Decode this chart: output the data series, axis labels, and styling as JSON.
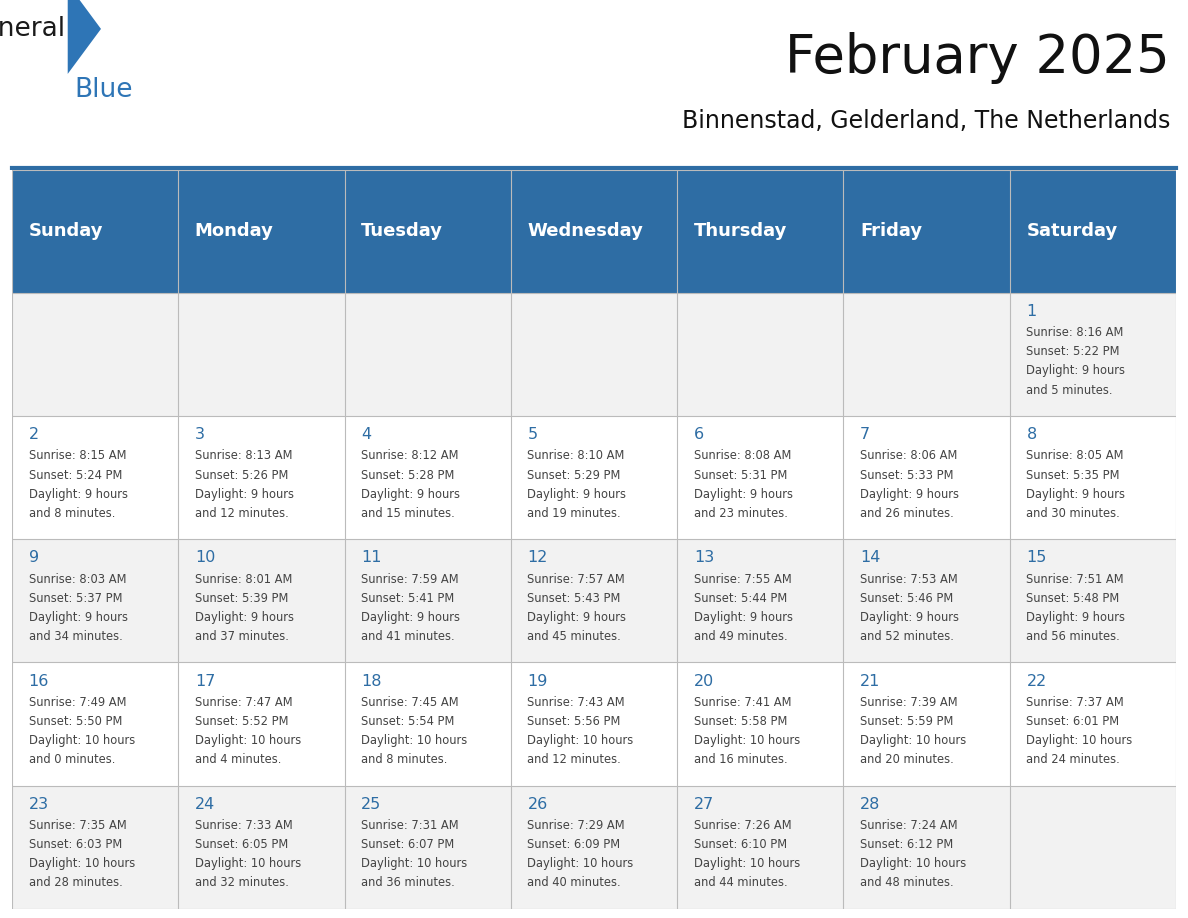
{
  "title": "February 2025",
  "subtitle": "Binnenstad, Gelderland, The Netherlands",
  "header_bg": "#2E6DA4",
  "header_text_color": "#FFFFFF",
  "cell_bg_odd": "#F2F2F2",
  "cell_bg_even": "#FFFFFF",
  "day_number_color": "#2E6DA4",
  "text_color": "#444444",
  "days_of_week": [
    "Sunday",
    "Monday",
    "Tuesday",
    "Wednesday",
    "Thursday",
    "Friday",
    "Saturday"
  ],
  "weeks": [
    [
      {
        "day": "",
        "info": ""
      },
      {
        "day": "",
        "info": ""
      },
      {
        "day": "",
        "info": ""
      },
      {
        "day": "",
        "info": ""
      },
      {
        "day": "",
        "info": ""
      },
      {
        "day": "",
        "info": ""
      },
      {
        "day": "1",
        "info": "Sunrise: 8:16 AM\nSunset: 5:22 PM\nDaylight: 9 hours\nand 5 minutes."
      }
    ],
    [
      {
        "day": "2",
        "info": "Sunrise: 8:15 AM\nSunset: 5:24 PM\nDaylight: 9 hours\nand 8 minutes."
      },
      {
        "day": "3",
        "info": "Sunrise: 8:13 AM\nSunset: 5:26 PM\nDaylight: 9 hours\nand 12 minutes."
      },
      {
        "day": "4",
        "info": "Sunrise: 8:12 AM\nSunset: 5:28 PM\nDaylight: 9 hours\nand 15 minutes."
      },
      {
        "day": "5",
        "info": "Sunrise: 8:10 AM\nSunset: 5:29 PM\nDaylight: 9 hours\nand 19 minutes."
      },
      {
        "day": "6",
        "info": "Sunrise: 8:08 AM\nSunset: 5:31 PM\nDaylight: 9 hours\nand 23 minutes."
      },
      {
        "day": "7",
        "info": "Sunrise: 8:06 AM\nSunset: 5:33 PM\nDaylight: 9 hours\nand 26 minutes."
      },
      {
        "day": "8",
        "info": "Sunrise: 8:05 AM\nSunset: 5:35 PM\nDaylight: 9 hours\nand 30 minutes."
      }
    ],
    [
      {
        "day": "9",
        "info": "Sunrise: 8:03 AM\nSunset: 5:37 PM\nDaylight: 9 hours\nand 34 minutes."
      },
      {
        "day": "10",
        "info": "Sunrise: 8:01 AM\nSunset: 5:39 PM\nDaylight: 9 hours\nand 37 minutes."
      },
      {
        "day": "11",
        "info": "Sunrise: 7:59 AM\nSunset: 5:41 PM\nDaylight: 9 hours\nand 41 minutes."
      },
      {
        "day": "12",
        "info": "Sunrise: 7:57 AM\nSunset: 5:43 PM\nDaylight: 9 hours\nand 45 minutes."
      },
      {
        "day": "13",
        "info": "Sunrise: 7:55 AM\nSunset: 5:44 PM\nDaylight: 9 hours\nand 49 minutes."
      },
      {
        "day": "14",
        "info": "Sunrise: 7:53 AM\nSunset: 5:46 PM\nDaylight: 9 hours\nand 52 minutes."
      },
      {
        "day": "15",
        "info": "Sunrise: 7:51 AM\nSunset: 5:48 PM\nDaylight: 9 hours\nand 56 minutes."
      }
    ],
    [
      {
        "day": "16",
        "info": "Sunrise: 7:49 AM\nSunset: 5:50 PM\nDaylight: 10 hours\nand 0 minutes."
      },
      {
        "day": "17",
        "info": "Sunrise: 7:47 AM\nSunset: 5:52 PM\nDaylight: 10 hours\nand 4 minutes."
      },
      {
        "day": "18",
        "info": "Sunrise: 7:45 AM\nSunset: 5:54 PM\nDaylight: 10 hours\nand 8 minutes."
      },
      {
        "day": "19",
        "info": "Sunrise: 7:43 AM\nSunset: 5:56 PM\nDaylight: 10 hours\nand 12 minutes."
      },
      {
        "day": "20",
        "info": "Sunrise: 7:41 AM\nSunset: 5:58 PM\nDaylight: 10 hours\nand 16 minutes."
      },
      {
        "day": "21",
        "info": "Sunrise: 7:39 AM\nSunset: 5:59 PM\nDaylight: 10 hours\nand 20 minutes."
      },
      {
        "day": "22",
        "info": "Sunrise: 7:37 AM\nSunset: 6:01 PM\nDaylight: 10 hours\nand 24 minutes."
      }
    ],
    [
      {
        "day": "23",
        "info": "Sunrise: 7:35 AM\nSunset: 6:03 PM\nDaylight: 10 hours\nand 28 minutes."
      },
      {
        "day": "24",
        "info": "Sunrise: 7:33 AM\nSunset: 6:05 PM\nDaylight: 10 hours\nand 32 minutes."
      },
      {
        "day": "25",
        "info": "Sunrise: 7:31 AM\nSunset: 6:07 PM\nDaylight: 10 hours\nand 36 minutes."
      },
      {
        "day": "26",
        "info": "Sunrise: 7:29 AM\nSunset: 6:09 PM\nDaylight: 10 hours\nand 40 minutes."
      },
      {
        "day": "27",
        "info": "Sunrise: 7:26 AM\nSunset: 6:10 PM\nDaylight: 10 hours\nand 44 minutes."
      },
      {
        "day": "28",
        "info": "Sunrise: 7:24 AM\nSunset: 6:12 PM\nDaylight: 10 hours\nand 48 minutes."
      },
      {
        "day": "",
        "info": ""
      }
    ]
  ],
  "logo_text1": "General",
  "logo_text2": "Blue",
  "logo_color1": "#1a1a1a",
  "logo_color2": "#2E75B6",
  "logo_triangle_color": "#2E75B6",
  "separator_color": "#2E6DA4",
  "grid_color": "#BBBBBB"
}
